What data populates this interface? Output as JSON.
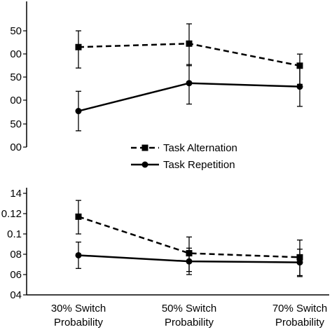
{
  "categories": [
    "30% Switch\nProbability",
    "50% Switch\nProbability",
    "70% Switch\nProbability"
  ],
  "legend": {
    "placement": "between-panels",
    "items": [
      {
        "name": "Task Alternation",
        "style": "dashed",
        "marker": "square"
      },
      {
        "name": "Task Repetition",
        "style": "solid",
        "marker": "circle"
      }
    ]
  },
  "chart_data": [
    {
      "type": "line",
      "panel": "top",
      "categories": [
        "30% Switch Probability",
        "50% Switch Probability",
        "70% Switch Probability"
      ],
      "tick_labels": [
        "00",
        "50",
        "00",
        "50",
        "00",
        "50"
      ],
      "ylim": [
        0,
        5
      ],
      "series": [
        {
          "name": "Task Alternation",
          "values": [
            4.3,
            4.45,
            3.5
          ],
          "err_low": [
            3.4,
            3.5,
            2.7
          ],
          "err_high": [
            5.0,
            5.3,
            4.0
          ]
        },
        {
          "name": "Task Repetition",
          "values": [
            1.55,
            2.75,
            2.6
          ],
          "err_low": [
            0.7,
            1.85,
            1.75
          ],
          "err_high": [
            2.4,
            3.55,
            3.4
          ]
        }
      ]
    },
    {
      "type": "line",
      "panel": "bottom",
      "categories": [
        "30% Switch Probability",
        "50% Switch Probability",
        "70% Switch Probability"
      ],
      "tick_labels": [
        "04",
        "06",
        "08",
        "0.1",
        "0.12",
        "14"
      ],
      "ylim": [
        0.04,
        0.14
      ],
      "series": [
        {
          "name": "Task Alternation",
          "values": [
            0.117,
            0.081,
            0.077
          ],
          "err_low": [
            0.1,
            0.063,
            0.059
          ],
          "err_high": [
            0.133,
            0.097,
            0.094
          ]
        },
        {
          "name": "Task Repetition",
          "values": [
            0.079,
            0.073,
            0.072
          ],
          "err_low": [
            0.066,
            0.06,
            0.058
          ],
          "err_high": [
            0.092,
            0.086,
            0.085
          ]
        }
      ]
    }
  ]
}
